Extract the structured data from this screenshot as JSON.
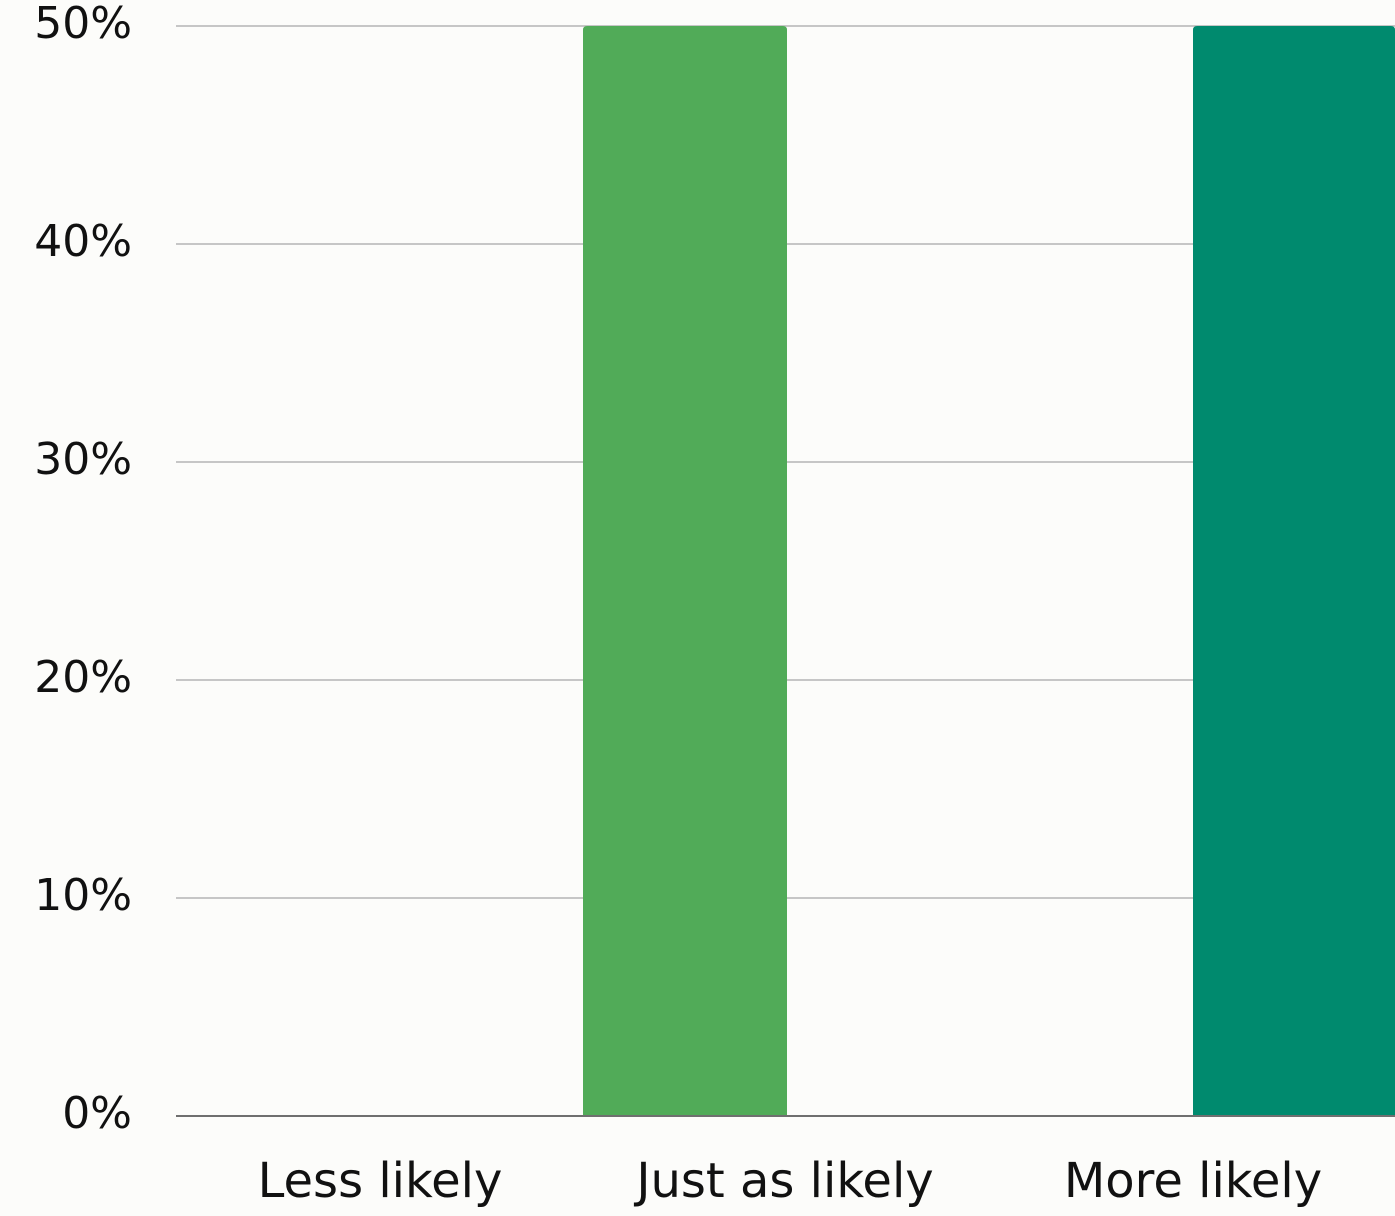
{
  "chart_data": {
    "type": "bar",
    "categories": [
      "Less likely",
      "Just as likely",
      "More likely"
    ],
    "series": [
      {
        "values": [
          0,
          50,
          50
        ],
        "colors": [
          "#51ab58",
          "#51ab58",
          "#008a6e"
        ]
      }
    ],
    "ylim": [
      0,
      50
    ],
    "yticks": [
      "0%",
      "10%",
      "20%",
      "30%",
      "40%",
      "50%"
    ],
    "ytick_values": [
      0,
      10,
      20,
      30,
      40,
      50
    ],
    "grid": true,
    "grid_color": "#c6c6c6",
    "axis_color": "#6f6f6f",
    "background": "#fcfcfa"
  }
}
